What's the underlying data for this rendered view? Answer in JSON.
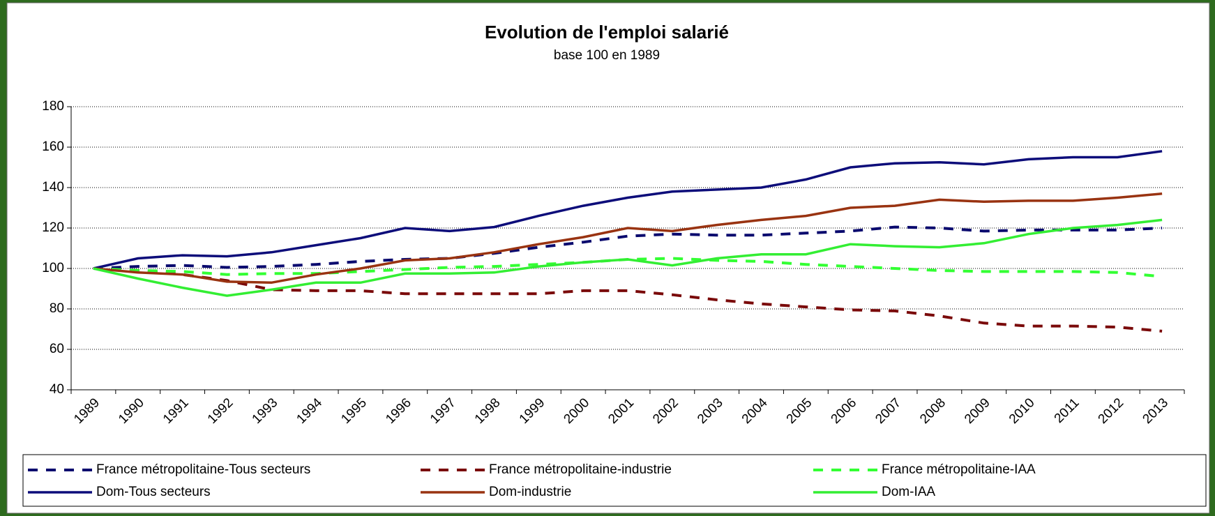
{
  "chart_data": {
    "type": "line",
    "title": "Evolution de l'emploi salarié",
    "subtitle": "base 100 en 1989",
    "categories": [
      "1989",
      "1990",
      "1991",
      "1992",
      "1993",
      "1994",
      "1995",
      "1996",
      "1997",
      "1998",
      "1999",
      "2000",
      "2001",
      "2002",
      "2003",
      "2004",
      "2005",
      "2006",
      "2007",
      "2008",
      "2009",
      "2010",
      "2011",
      "2012",
      "2013"
    ],
    "ylim": [
      40,
      180
    ],
    "yticks": [
      40,
      60,
      80,
      100,
      120,
      140,
      160,
      180
    ],
    "grid": true,
    "legend": "bottom",
    "series": [
      {
        "name": "France métropolitaine-Tous secteurs",
        "color": "#0a0a6e",
        "dashed": true,
        "values": [
          100,
          101,
          101.5,
          100.5,
          101,
          102,
          103.5,
          104.5,
          105,
          107.5,
          110.5,
          113,
          116,
          117,
          116.5,
          116.5,
          117.5,
          118.5,
          120.5,
          120,
          118.5,
          119,
          119,
          119,
          120
        ]
      },
      {
        "name": "France métropolitaine-industrie",
        "color": "#7a0a0a",
        "dashed": true,
        "values": [
          100,
          99,
          97,
          94,
          89.5,
          89,
          89,
          87.5,
          87.5,
          87.5,
          87.5,
          89,
          89,
          87,
          84.5,
          82.5,
          81,
          79.5,
          79,
          76.5,
          73,
          71.5,
          71.5,
          71,
          69
        ]
      },
      {
        "name": "France métropolitaine-IAA",
        "color": "#33ff33",
        "dashed": true,
        "values": [
          100,
          99,
          98.5,
          97,
          97.5,
          97.5,
          98.5,
          99.5,
          100.5,
          101,
          102,
          103,
          104.5,
          105,
          104,
          103.5,
          102,
          101,
          100,
          99,
          98.5,
          98.5,
          98.5,
          98,
          96
        ]
      },
      {
        "name": "Dom-Tous secteurs",
        "color": "#0d0d7a",
        "dashed": false,
        "values": [
          100,
          105,
          106.5,
          106,
          108,
          111.5,
          115,
          120,
          118.5,
          120.5,
          126,
          131,
          135,
          138,
          139,
          140,
          144,
          150,
          152,
          152.5,
          151.5,
          154,
          155,
          155,
          158
        ]
      },
      {
        "name": "Dom-industrie",
        "color": "#993311",
        "dashed": false,
        "values": [
          100,
          98,
          97,
          93.5,
          93,
          97,
          100,
          104,
          105,
          108,
          112,
          115.5,
          120,
          118.5,
          121.5,
          124,
          126,
          130,
          131,
          134,
          133,
          133.5,
          133.5,
          135,
          137
        ]
      },
      {
        "name": "Dom-IAA",
        "color": "#33ee33",
        "dashed": false,
        "values": [
          100,
          95,
          90.5,
          86.5,
          89.5,
          93,
          93,
          97.5,
          97.5,
          98,
          101,
          103,
          104.5,
          101.5,
          105,
          107,
          107,
          112,
          111,
          110.5,
          112.5,
          117,
          120,
          121.5,
          124
        ]
      }
    ]
  }
}
